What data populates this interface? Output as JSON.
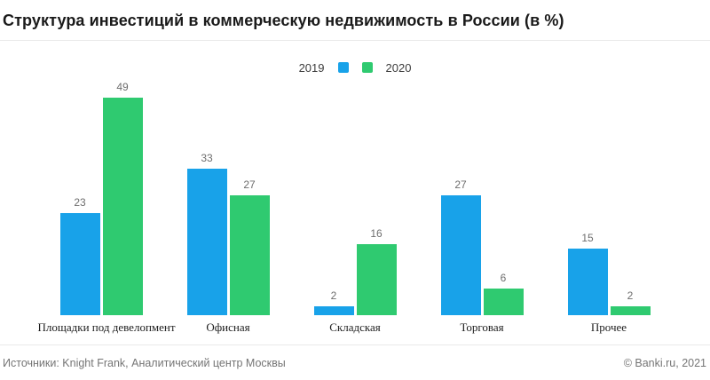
{
  "title": "Структура инвестиций в коммерческую недвижимость в России (в %)",
  "legend": {
    "items": [
      {
        "label": "2019",
        "color": "#18a2e9"
      },
      {
        "label": "2020",
        "color": "#2fca70"
      }
    ],
    "position": "top-center"
  },
  "chart_data": {
    "type": "bar",
    "categories": [
      "Площадки под девелопмент",
      "Офисная",
      "Складская",
      "Торговая",
      "Прочее"
    ],
    "series": [
      {
        "name": "2019",
        "color": "#18a2e9",
        "values": [
          23,
          33,
          2,
          27,
          15
        ]
      },
      {
        "name": "2020",
        "color": "#2fca70",
        "values": [
          49,
          27,
          16,
          6,
          2
        ]
      }
    ],
    "title": "Структура инвестиций в коммерческую недвижимость в России (в %)",
    "xlabel": "",
    "ylabel": "",
    "ylim": [
      0,
      49
    ],
    "grid": false,
    "value_labels": true,
    "legend_position": "top-center"
  },
  "footer": {
    "sources": "Источники: Knight Frank, Аналитический центр Москвы",
    "copyright": "© Banki.ru, 2021"
  }
}
